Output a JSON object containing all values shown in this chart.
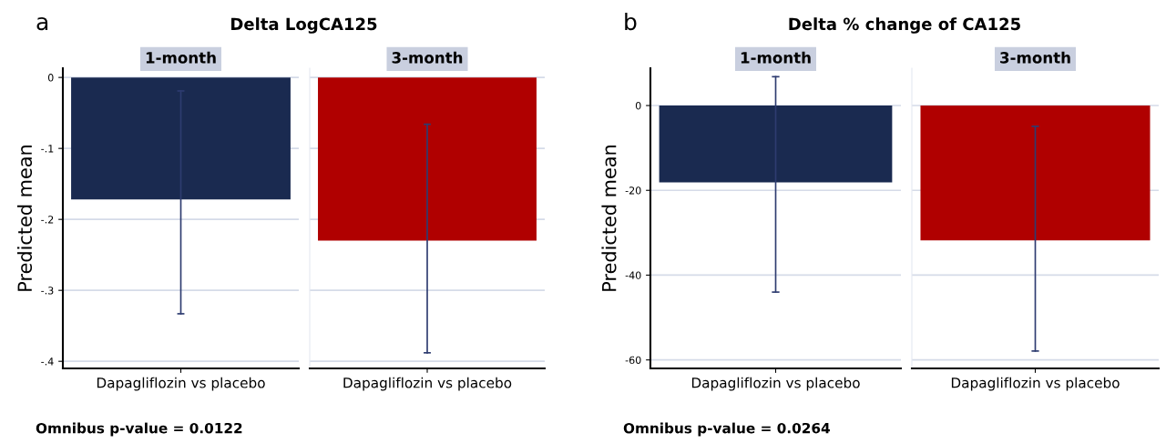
{
  "chart_data": [
    {
      "type": "bar",
      "title": "1-month",
      "ylabel": "Predicted mean",
      "annotations": [
        "a",
        "Delta LogCA125",
        "Omnibus p-value = 0.0122"
      ],
      "categories": [
        "Dapagliflozin vs placebo"
      ],
      "series": [
        {
          "color": "#1a2a50",
          "values": [
            -0.172
          ],
          "errors": [
            [
              -0.333,
              -0.019
            ]
          ]
        }
      ],
      "ylim": [
        -0.41,
        0.013
      ],
      "yticks": [
        0,
        {
          "value": -0.1,
          "label": "-.1"
        },
        {
          "value": -0.2,
          "label": "-.2"
        },
        {
          "value": -0.3,
          "label": "-.3"
        },
        {
          "value": -0.4,
          "label": "-.4"
        }
      ],
      "grid": "y"
    },
    {
      "type": "bar",
      "title": "3-month",
      "categories": [
        "Dapagliflozin vs placebo"
      ],
      "series": [
        {
          "color": "#b00000",
          "values": [
            -0.23
          ],
          "errors": [
            [
              -0.388,
              -0.066
            ]
          ]
        }
      ],
      "ylim": [
        -0.41,
        0.013
      ],
      "yticks": [
        {
          "value": 0,
          "label": null
        },
        {
          "value": -0.1,
          "label": null
        },
        {
          "value": -0.2,
          "label": null
        },
        {
          "value": -0.3,
          "label": null
        },
        {
          "value": -0.4,
          "label": null
        }
      ],
      "grid": "y",
      "tick_labels": "x"
    },
    {
      "type": "bar",
      "title": "1-month",
      "ylabel": "Predicted mean",
      "annotations": [
        "b",
        "Delta % change of CA125",
        "Omnibus p-value = 0.0264"
      ],
      "categories": [
        "Dapagliflozin vs placebo"
      ],
      "series": [
        {
          "color": "#1a2a50",
          "values": [
            -18.1
          ],
          "errors": [
            [
              -44,
              6.8
            ]
          ]
        }
      ],
      "ylim": [
        -62,
        8.8
      ],
      "yticks": [
        0,
        -20,
        -40,
        -60
      ],
      "grid": "y"
    },
    {
      "type": "bar",
      "title": "3-month",
      "categories": [
        "Dapagliflozin vs placebo"
      ],
      "series": [
        {
          "color": "#b00000",
          "values": [
            -31.8
          ],
          "errors": [
            [
              -57.9,
              -4.9
            ]
          ]
        }
      ],
      "ylim": [
        -62,
        8.8
      ],
      "yticks": [
        {
          "value": 0,
          "label": null
        },
        {
          "value": -20,
          "label": null
        },
        {
          "value": -40,
          "label": null
        },
        {
          "value": -60,
          "label": null
        }
      ],
      "grid": "y",
      "tick_labels": "x"
    }
  ]
}
